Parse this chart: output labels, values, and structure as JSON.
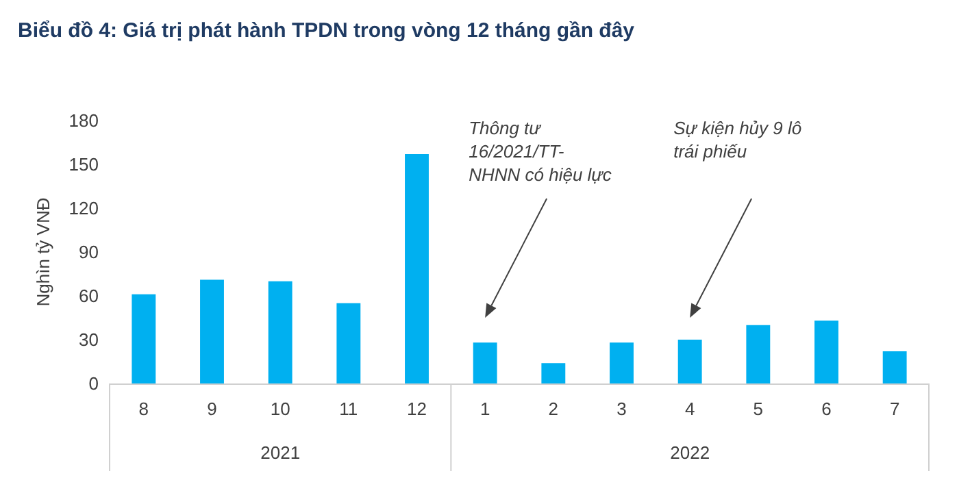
{
  "chart_data": {
    "type": "bar",
    "title": "Biểu đồ 4: Giá trị phát hành TPDN trong vòng 12 tháng gần đây",
    "ylabel": "Nghìn tỷ VNĐ",
    "categories": [
      "8",
      "9",
      "10",
      "11",
      "12",
      "1",
      "2",
      "3",
      "4",
      "5",
      "6",
      "7"
    ],
    "values": [
      61,
      71,
      70,
      55,
      157,
      28,
      14,
      28,
      30,
      40,
      43,
      22
    ],
    "color": "#00b0f0",
    "ylim": [
      0,
      180
    ],
    "yticks": [
      0,
      30,
      60,
      90,
      120,
      150,
      180
    ],
    "grid": false,
    "annotations": [
      "2021",
      "2022",
      "Thông tư\n16/2021/TT-\nNHNN có hiệu lực",
      "Sự kiện hủy 9 lô\ntrái phiếu"
    ]
  }
}
